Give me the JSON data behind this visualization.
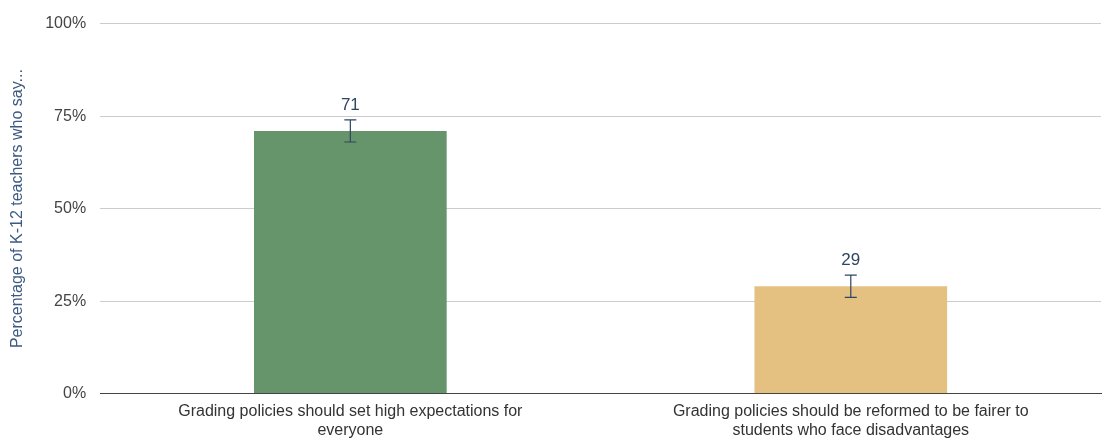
{
  "chart_data": {
    "type": "bar",
    "ylabel": "Percentage of K-12 teachers who say...",
    "categories": [
      "Grading policies should set high expectations for everyone",
      "Grading policies should be reformed to be fairer to students who face disadvantages"
    ],
    "values": [
      71,
      29
    ],
    "colors": [
      "#66956c",
      "#e5c181"
    ],
    "errors": [
      3,
      3
    ],
    "data_labels": true,
    "ylim": [
      0,
      100
    ],
    "yticks": [
      {
        "value": 0,
        "label": "0%"
      },
      {
        "value": 25,
        "label": "25%"
      },
      {
        "value": 50,
        "label": "50%"
      },
      {
        "value": 75,
        "label": "75%"
      },
      {
        "value": 100,
        "label": "100%"
      }
    ],
    "grid": "y",
    "legend": false
  }
}
